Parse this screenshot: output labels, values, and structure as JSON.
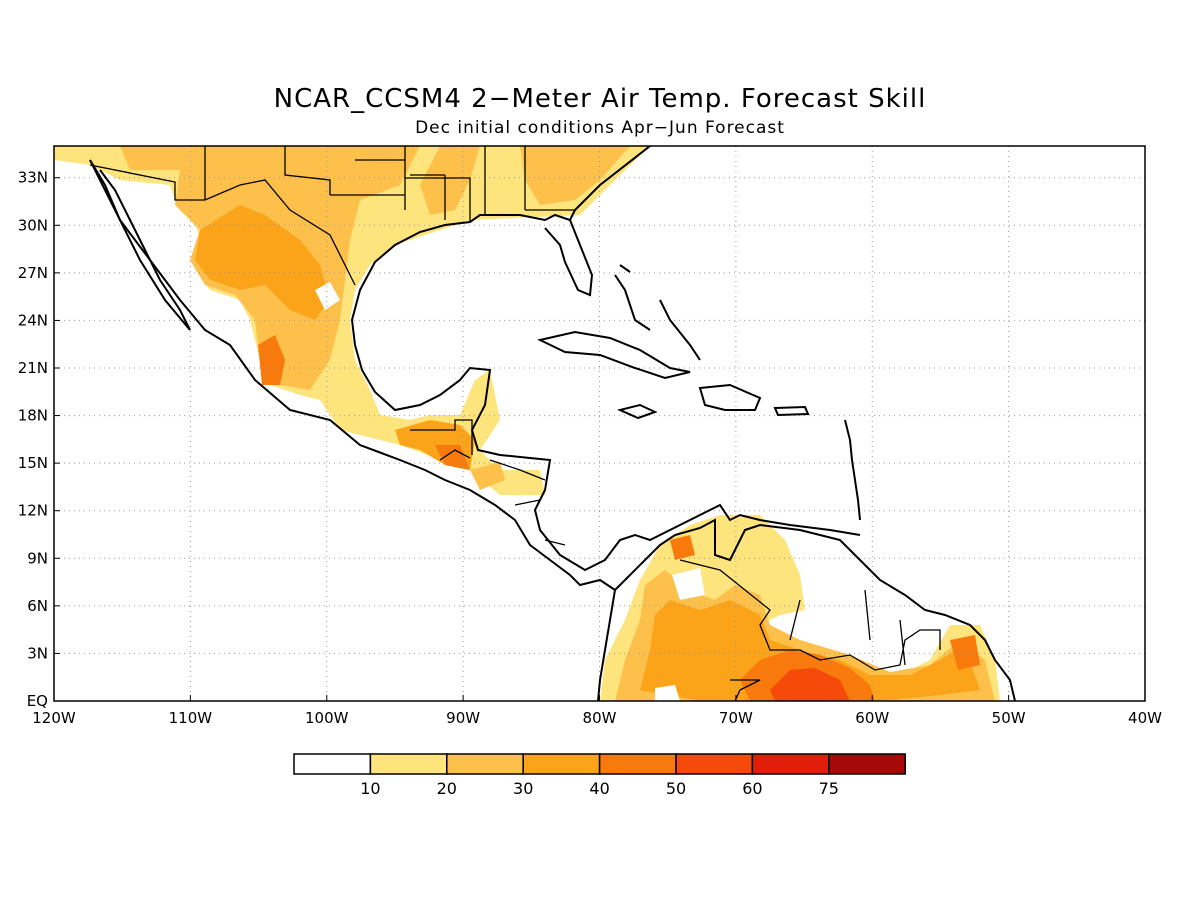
{
  "title": "NCAR_CCSM4 2−Meter Air Temp. Forecast Skill",
  "subtitle": "Dec initial conditions  Apr−Jun Forecast",
  "map": {
    "lon_range": [
      -120,
      -40
    ],
    "lat_range": [
      0,
      35
    ],
    "grid": "dotted",
    "lat_ticks": [
      "33N",
      "30N",
      "27N",
      "24N",
      "21N",
      "18N",
      "15N",
      "12N",
      "9N",
      "6N",
      "3N",
      "EQ"
    ],
    "lon_ticks": [
      "120W",
      "110W",
      "100W",
      "90W",
      "80W",
      "70W",
      "60W",
      "50W",
      "40W"
    ]
  },
  "colorbar": {
    "labels": [
      "10",
      "20",
      "30",
      "40",
      "50",
      "60",
      "75"
    ],
    "colors": [
      "#ffffff",
      "#fee47c",
      "#fdc04a",
      "#fca419",
      "#f97a0c",
      "#f54a09",
      "#e01e0a",
      "#a50a08"
    ]
  },
  "skill_colors": {
    "c20": "#fee47c",
    "c30": "#fdc04a",
    "c40": "#fca419",
    "c50": "#f97a0c",
    "c60": "#f54a09"
  }
}
